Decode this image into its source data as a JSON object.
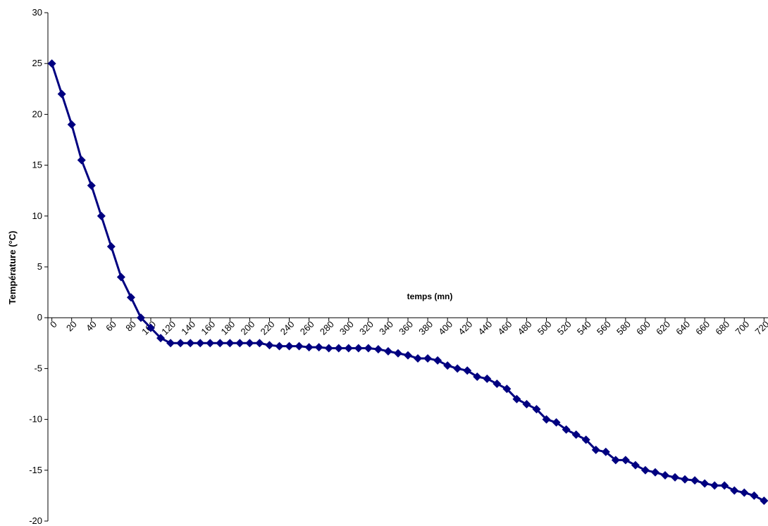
{
  "chart_data": {
    "type": "line",
    "x_label": "temps (mn)",
    "y_label": "Température (°C)",
    "color": "#000080",
    "x": [
      0,
      10,
      20,
      30,
      40,
      50,
      60,
      70,
      80,
      90,
      100,
      110,
      120,
      130,
      140,
      150,
      160,
      170,
      180,
      190,
      200,
      210,
      220,
      230,
      240,
      250,
      260,
      270,
      280,
      290,
      300,
      310,
      320,
      330,
      340,
      350,
      360,
      370,
      380,
      390,
      400,
      410,
      420,
      430,
      440,
      450,
      460,
      470,
      480,
      490,
      500,
      510,
      520,
      530,
      540,
      550,
      560,
      570,
      580,
      590,
      600,
      610,
      620,
      630,
      640,
      650,
      660,
      670,
      680,
      690,
      700,
      710,
      720
    ],
    "values": [
      25,
      22,
      19,
      15.5,
      13,
      10,
      7,
      4,
      2,
      0,
      -1,
      -2,
      -2.5,
      -2.5,
      -2.5,
      -2.5,
      -2.5,
      -2.5,
      -2.5,
      -2.5,
      -2.5,
      -2.5,
      -2.7,
      -2.8,
      -2.8,
      -2.8,
      -2.9,
      -2.9,
      -3,
      -3,
      -3,
      -3,
      -3,
      -3.1,
      -3.3,
      -3.5,
      -3.7,
      -4,
      -4,
      -4.2,
      -4.7,
      -5,
      -5.2,
      -5.8,
      -6,
      -6.5,
      -7,
      -8,
      -8.5,
      -9,
      -10,
      -10.3,
      -11,
      -11.5,
      -12,
      -13,
      -13.2,
      -14,
      -14,
      -14.5,
      -15,
      -15.2,
      -15.5,
      -15.7,
      -15.9,
      -16,
      -16.3,
      -16.5,
      -16.5,
      -17,
      -17.2,
      -17.5,
      -18
    ],
    "xlim": [
      -4,
      724
    ],
    "xticks": [
      0,
      20,
      40,
      60,
      80,
      100,
      120,
      140,
      160,
      180,
      200,
      220,
      240,
      260,
      280,
      300,
      320,
      340,
      360,
      380,
      400,
      420,
      440,
      460,
      480,
      500,
      520,
      540,
      560,
      580,
      600,
      620,
      640,
      660,
      680,
      700,
      720
    ],
    "ylim": [
      -20,
      30
    ],
    "yticks": [
      -20,
      -15,
      -10,
      -5,
      0,
      5,
      10,
      15,
      20,
      25,
      30
    ]
  }
}
